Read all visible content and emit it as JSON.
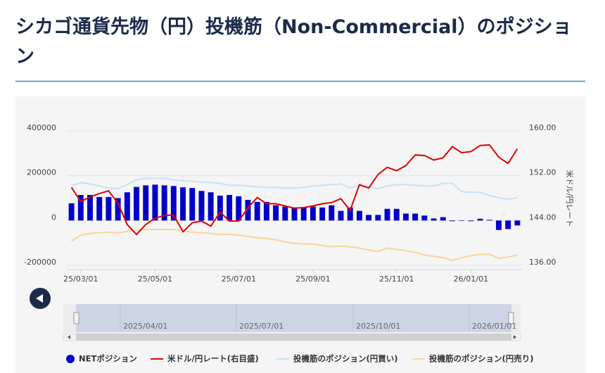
{
  "chart_data": {
    "type": "combo",
    "title": "シカゴ通貨先物（円）投機筋（Non-Commercial）のポジション",
    "y2_label": "米ドル/円レート",
    "categories": [
      null,
      "25/03/01",
      null,
      null,
      null,
      null,
      null,
      null,
      null,
      "25/05/01",
      null,
      null,
      null,
      null,
      null,
      null,
      null,
      null,
      "25/07/01",
      null,
      null,
      null,
      null,
      null,
      null,
      null,
      "25/09/01",
      null,
      null,
      null,
      null,
      null,
      null,
      null,
      null,
      "25/11/01",
      null,
      null,
      null,
      null,
      null,
      null,
      null,
      "26/01/01",
      null,
      null,
      null,
      null,
      null
    ],
    "ylim": [
      -200000,
      400000
    ],
    "yticks": [
      -200000,
      0,
      200000,
      400000
    ],
    "y2lim": [
      136,
      160
    ],
    "y2ticks": [
      {
        "value": 136,
        "label": "136.00"
      },
      {
        "value": 144,
        "label": "144.00"
      },
      {
        "value": 152,
        "label": "152.00"
      },
      {
        "value": 160,
        "label": "160.00"
      }
    ],
    "grid": true,
    "series": [
      {
        "name": "NETポジション",
        "type": "bar",
        "color": "#0000c8",
        "values": [
          77000,
          114000,
          114000,
          105000,
          105000,
          100000,
          126000,
          150000,
          157000,
          160000,
          157000,
          154000,
          148000,
          145000,
          132000,
          126000,
          111000,
          114000,
          108000,
          92000,
          83000,
          83000,
          68000,
          62000,
          58000,
          58000,
          62000,
          58000,
          68000,
          43000,
          58000,
          43000,
          25000,
          25000,
          52000,
          52000,
          31000,
          31000,
          22000,
          9000,
          15000,
          -3000,
          -2000,
          -3000,
          8000,
          3000,
          -42000,
          -38000,
          -22000
        ]
      },
      {
        "name": "米ドル/円レート(右目盛)",
        "type": "line",
        "axis": "y2",
        "color": "#e00000",
        "values": [
          149.9,
          147.4,
          148.2,
          148.8,
          149.3,
          147.1,
          143.3,
          141.5,
          143.3,
          144.4,
          144.9,
          145.0,
          142.0,
          143.6,
          143.9,
          143.0,
          145.5,
          143.9,
          143.9,
          146.3,
          148.1,
          147.0,
          147.0,
          146.6,
          146.2,
          146.3,
          146.6,
          147.0,
          147.2,
          147.9,
          145.8,
          150.4,
          149.8,
          152.2,
          153.5,
          152.9,
          153.8,
          155.7,
          155.6,
          154.8,
          155.2,
          157.2,
          156.1,
          156.3,
          157.4,
          157.5,
          155.3,
          154.2,
          156.8
        ]
      },
      {
        "name": "投機筋のポジション(円買い)",
        "type": "line",
        "color": "#c6e2f7",
        "values": [
          154000,
          169000,
          163000,
          154000,
          145000,
          142000,
          160000,
          182000,
          188000,
          188000,
          188000,
          182000,
          178000,
          175000,
          172000,
          169000,
          166000,
          157000,
          157000,
          154000,
          151000,
          148000,
          148000,
          145000,
          145000,
          148000,
          154000,
          157000,
          160000,
          163000,
          145000,
          157000,
          151000,
          142000,
          154000,
          160000,
          160000,
          157000,
          154000,
          154000,
          166000,
          166000,
          129000,
          126000,
          126000,
          111000,
          102000,
          95000,
          102000
        ]
      },
      {
        "name": "投機筋のポジション(円売り)",
        "type": "line",
        "color": "#f8d49a",
        "values": [
          -92000,
          -65000,
          -58000,
          -55000,
          -52000,
          -55000,
          -49000,
          -43000,
          -40000,
          -40000,
          -40000,
          -40000,
          -46000,
          -52000,
          -55000,
          -58000,
          -62000,
          -62000,
          -65000,
          -71000,
          -77000,
          -80000,
          -86000,
          -95000,
          -102000,
          -105000,
          -105000,
          -111000,
          -117000,
          -114000,
          -117000,
          -123000,
          -132000,
          -138000,
          -123000,
          -129000,
          -135000,
          -142000,
          -154000,
          -160000,
          -166000,
          -178000,
          -166000,
          -157000,
          -151000,
          -151000,
          -169000,
          -163000,
          -154000
        ]
      }
    ]
  },
  "navigator": {
    "labels": [
      "2025/04/01",
      "2025/07/01",
      "2025/10/01",
      "2026/01/01"
    ]
  }
}
